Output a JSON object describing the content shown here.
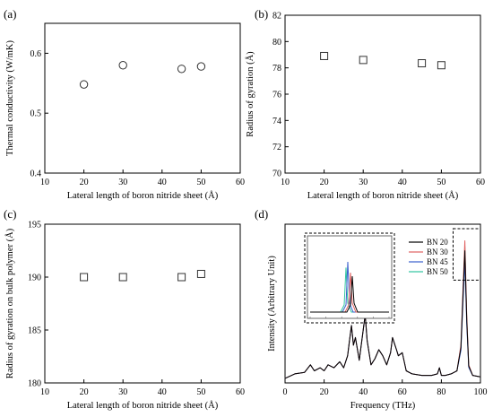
{
  "chart_data": [
    {
      "panel": "(a)",
      "type": "scatter",
      "marker": "circle",
      "xlabel": "Lateral length of boron nitride sheet (Å)",
      "ylabel": "Thermal conductivity (W/mK)",
      "xlim": [
        10,
        60
      ],
      "ylim": [
        0.4,
        0.65
      ],
      "xticks": [
        "10",
        "20",
        "30",
        "40",
        "50",
        "60"
      ],
      "yticks": [
        "0.4",
        "0.5",
        "0.6"
      ],
      "ytick_values": [
        0.4,
        0.5,
        0.6
      ],
      "x": [
        20,
        30,
        45,
        50
      ],
      "y": [
        0.548,
        0.58,
        0.574,
        0.578
      ]
    },
    {
      "panel": "(b)",
      "type": "scatter",
      "marker": "square",
      "xlabel": "Lateral length of boron nitride sheet (Å)",
      "ylabel": "Radius of gyration (Å)",
      "xlim": [
        10,
        60
      ],
      "ylim": [
        70,
        82
      ],
      "xticks": [
        "10",
        "20",
        "30",
        "40",
        "50",
        "60"
      ],
      "yticks": [
        "70",
        "72",
        "74",
        "76",
        "78",
        "80",
        "82"
      ],
      "ytick_values": [
        70,
        72,
        74,
        76,
        78,
        80,
        82
      ],
      "x": [
        20,
        30,
        45,
        50
      ],
      "y": [
        78.9,
        78.6,
        78.35,
        78.2
      ]
    },
    {
      "panel": "(c)",
      "type": "scatter",
      "marker": "square",
      "xlabel": "Lateral length of boron nitride sheet (Å)",
      "ylabel": "Radius of gyration on bulk polymer (Å)",
      "xlim": [
        10,
        60
      ],
      "ylim": [
        180,
        195
      ],
      "xticks": [
        "10",
        "20",
        "30",
        "40",
        "50",
        "60"
      ],
      "yticks": [
        "180",
        "185",
        "190",
        "195"
      ],
      "ytick_values": [
        180,
        185,
        190,
        195
      ],
      "x": [
        20,
        30,
        45,
        50
      ],
      "y": [
        190.0,
        190.0,
        190.0,
        190.3
      ]
    },
    {
      "panel": "(d)",
      "type": "line",
      "xlabel": "Frequency (THz)",
      "ylabel": "Intensity (Arbitrary Unit)",
      "xlim": [
        0,
        100
      ],
      "xticks": [
        "0",
        "20",
        "40",
        "60",
        "80",
        "100"
      ],
      "legend_position": "top-right",
      "has_inset": true,
      "series": [
        {
          "name": "BN 20",
          "color": "#000000",
          "peak_scale": 0.93
        },
        {
          "name": "BN 30",
          "color": "#e06060",
          "peak_scale": 1.0
        },
        {
          "name": "BN 45",
          "color": "#3a5fcd",
          "peak_scale": 0.86
        },
        {
          "name": "BN 50",
          "color": "#2ec4a0",
          "peak_scale": 0.96
        }
      ],
      "x": [
        0,
        5,
        10,
        13,
        15,
        18,
        20,
        22,
        25,
        28,
        30,
        32,
        33,
        34,
        35,
        36,
        38,
        40,
        41,
        42,
        44,
        46,
        48,
        50,
        52,
        54,
        55,
        56,
        57,
        58,
        60,
        62,
        65,
        70,
        75,
        78,
        79,
        80,
        82,
        85,
        88,
        90,
        91,
        92,
        93,
        94,
        96,
        100
      ],
      "y": [
        0.03,
        0.06,
        0.07,
        0.12,
        0.08,
        0.1,
        0.08,
        0.12,
        0.1,
        0.14,
        0.1,
        0.18,
        0.28,
        0.38,
        0.25,
        0.3,
        0.15,
        0.35,
        0.45,
        0.28,
        0.12,
        0.16,
        0.22,
        0.18,
        0.12,
        0.2,
        0.3,
        0.26,
        0.22,
        0.18,
        0.2,
        0.08,
        0.06,
        0.05,
        0.05,
        0.06,
        0.1,
        0.05,
        0.05,
        0.06,
        0.08,
        0.25,
        0.6,
        0.94,
        0.45,
        0.12,
        0.05,
        0.04
      ],
      "ylim": [
        0,
        1.05
      ]
    }
  ]
}
